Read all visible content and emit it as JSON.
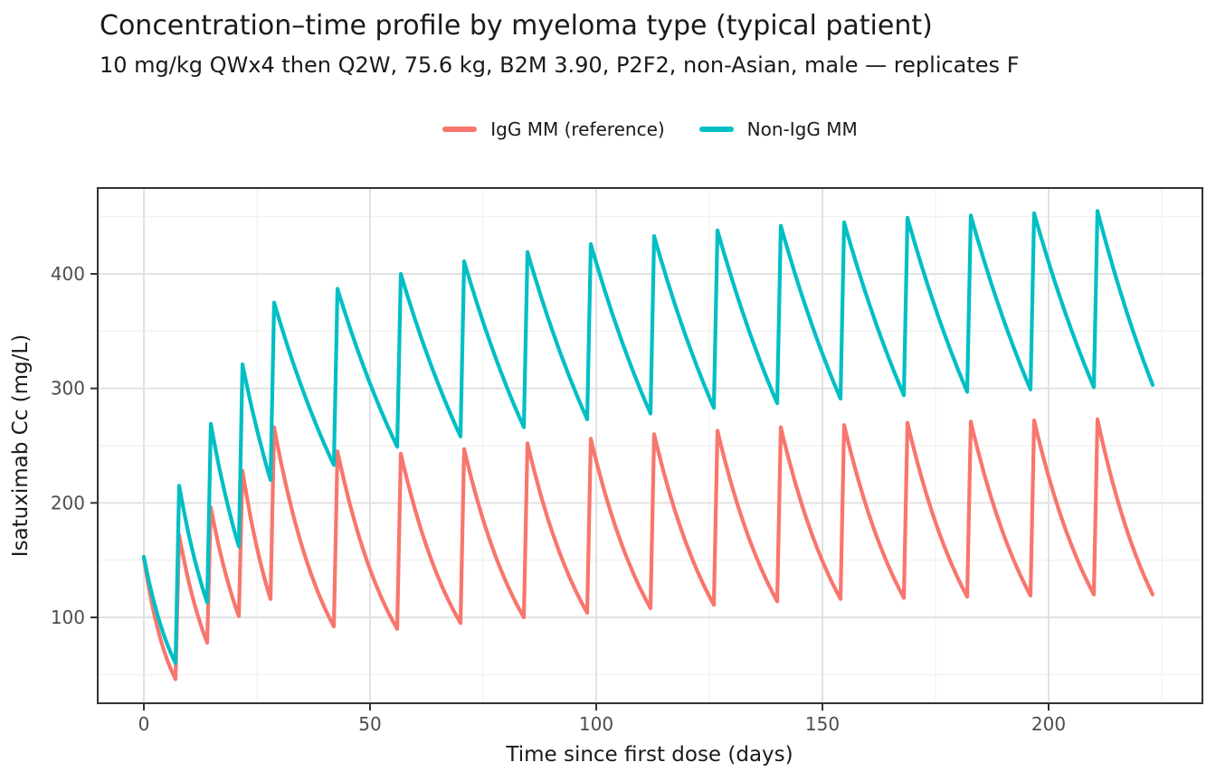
{
  "header": {
    "title": "Concentration–time profile by myeloma type (typical patient)",
    "subtitle": "10 mg/kg QWx4 then Q2W, 75.6 kg, B2M 3.90, P2F2, non-Asian, male — replicates F"
  },
  "legend": [
    {
      "label": "IgG MM (reference)",
      "color": "#F8766D"
    },
    {
      "label": "Non-IgG MM",
      "color": "#00BFC4"
    }
  ],
  "chart_data": {
    "type": "line",
    "title": "Concentration–time profile by myeloma type (typical patient)",
    "subtitle": "10 mg/kg QWx4 then Q2W, 75.6 kg, B2M 3.90, P2F2, non-Asian, male — replicates F",
    "xlabel": "Time since first dose (days)",
    "ylabel": "Isatuximab Cc (mg/L)",
    "xlim": [
      -10.2,
      234
    ],
    "ylim": [
      25,
      475
    ],
    "x_major_ticks": [
      0,
      50,
      100,
      150,
      200
    ],
    "x_minor_ticks": [
      25,
      75,
      125,
      175,
      225
    ],
    "y_major_ticks": [
      100,
      200,
      300,
      400
    ],
    "y_minor_ticks": [
      50,
      150,
      250,
      350,
      450
    ],
    "grid": true,
    "legend_position": "top",
    "dose_days": [
      0,
      7,
      14,
      21,
      28,
      42,
      56,
      70,
      84,
      98,
      112,
      126,
      140,
      154,
      168,
      182,
      196,
      210
    ],
    "end_day": 223,
    "series": [
      {
        "name": "IgG MM (reference)",
        "color": "#F8766D",
        "peaks": [
          152,
          172,
          196,
          228,
          266,
          245,
          243,
          247,
          252,
          256,
          260,
          263,
          266,
          268,
          270,
          271,
          272,
          273
        ],
        "troughs": [
          46,
          78,
          101,
          116,
          92,
          90,
          95,
          100,
          104,
          108,
          111,
          114,
          116,
          117,
          118,
          119,
          120,
          120
        ]
      },
      {
        "name": "Non-IgG MM",
        "color": "#00BFC4",
        "peaks": [
          153,
          215,
          269,
          321,
          375,
          387,
          400,
          411,
          419,
          426,
          433,
          438,
          442,
          445,
          449,
          451,
          453,
          455
        ],
        "troughs": [
          60,
          113,
          162,
          220,
          233,
          249,
          258,
          266,
          273,
          278,
          283,
          287,
          291,
          294,
          297,
          299,
          301,
          303
        ]
      }
    ],
    "panel_colors": {
      "background": "#ffffff",
      "border": "#333333",
      "grid_major": "#e2e2e2",
      "grid_minor": "#efefef",
      "tick": "#333333",
      "tick_text": "#4d4d4d"
    }
  }
}
